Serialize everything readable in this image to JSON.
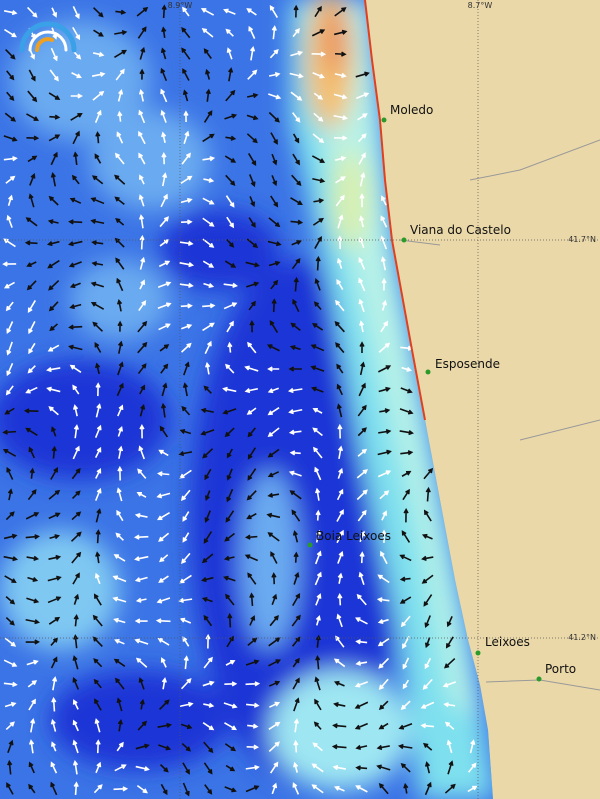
{
  "map": {
    "longitude_labels": [
      "8.9°W",
      "8.7°W"
    ],
    "latitude_labels": [
      "41.7°N",
      "41.2°N"
    ],
    "places": [
      {
        "label": "Moledo"
      },
      {
        "label": "Viana do Castelo"
      },
      {
        "label": "Esposende"
      },
      {
        "label": "Boia Leixoes"
      },
      {
        "label": "Leixoes"
      },
      {
        "label": "Porto"
      }
    ]
  }
}
